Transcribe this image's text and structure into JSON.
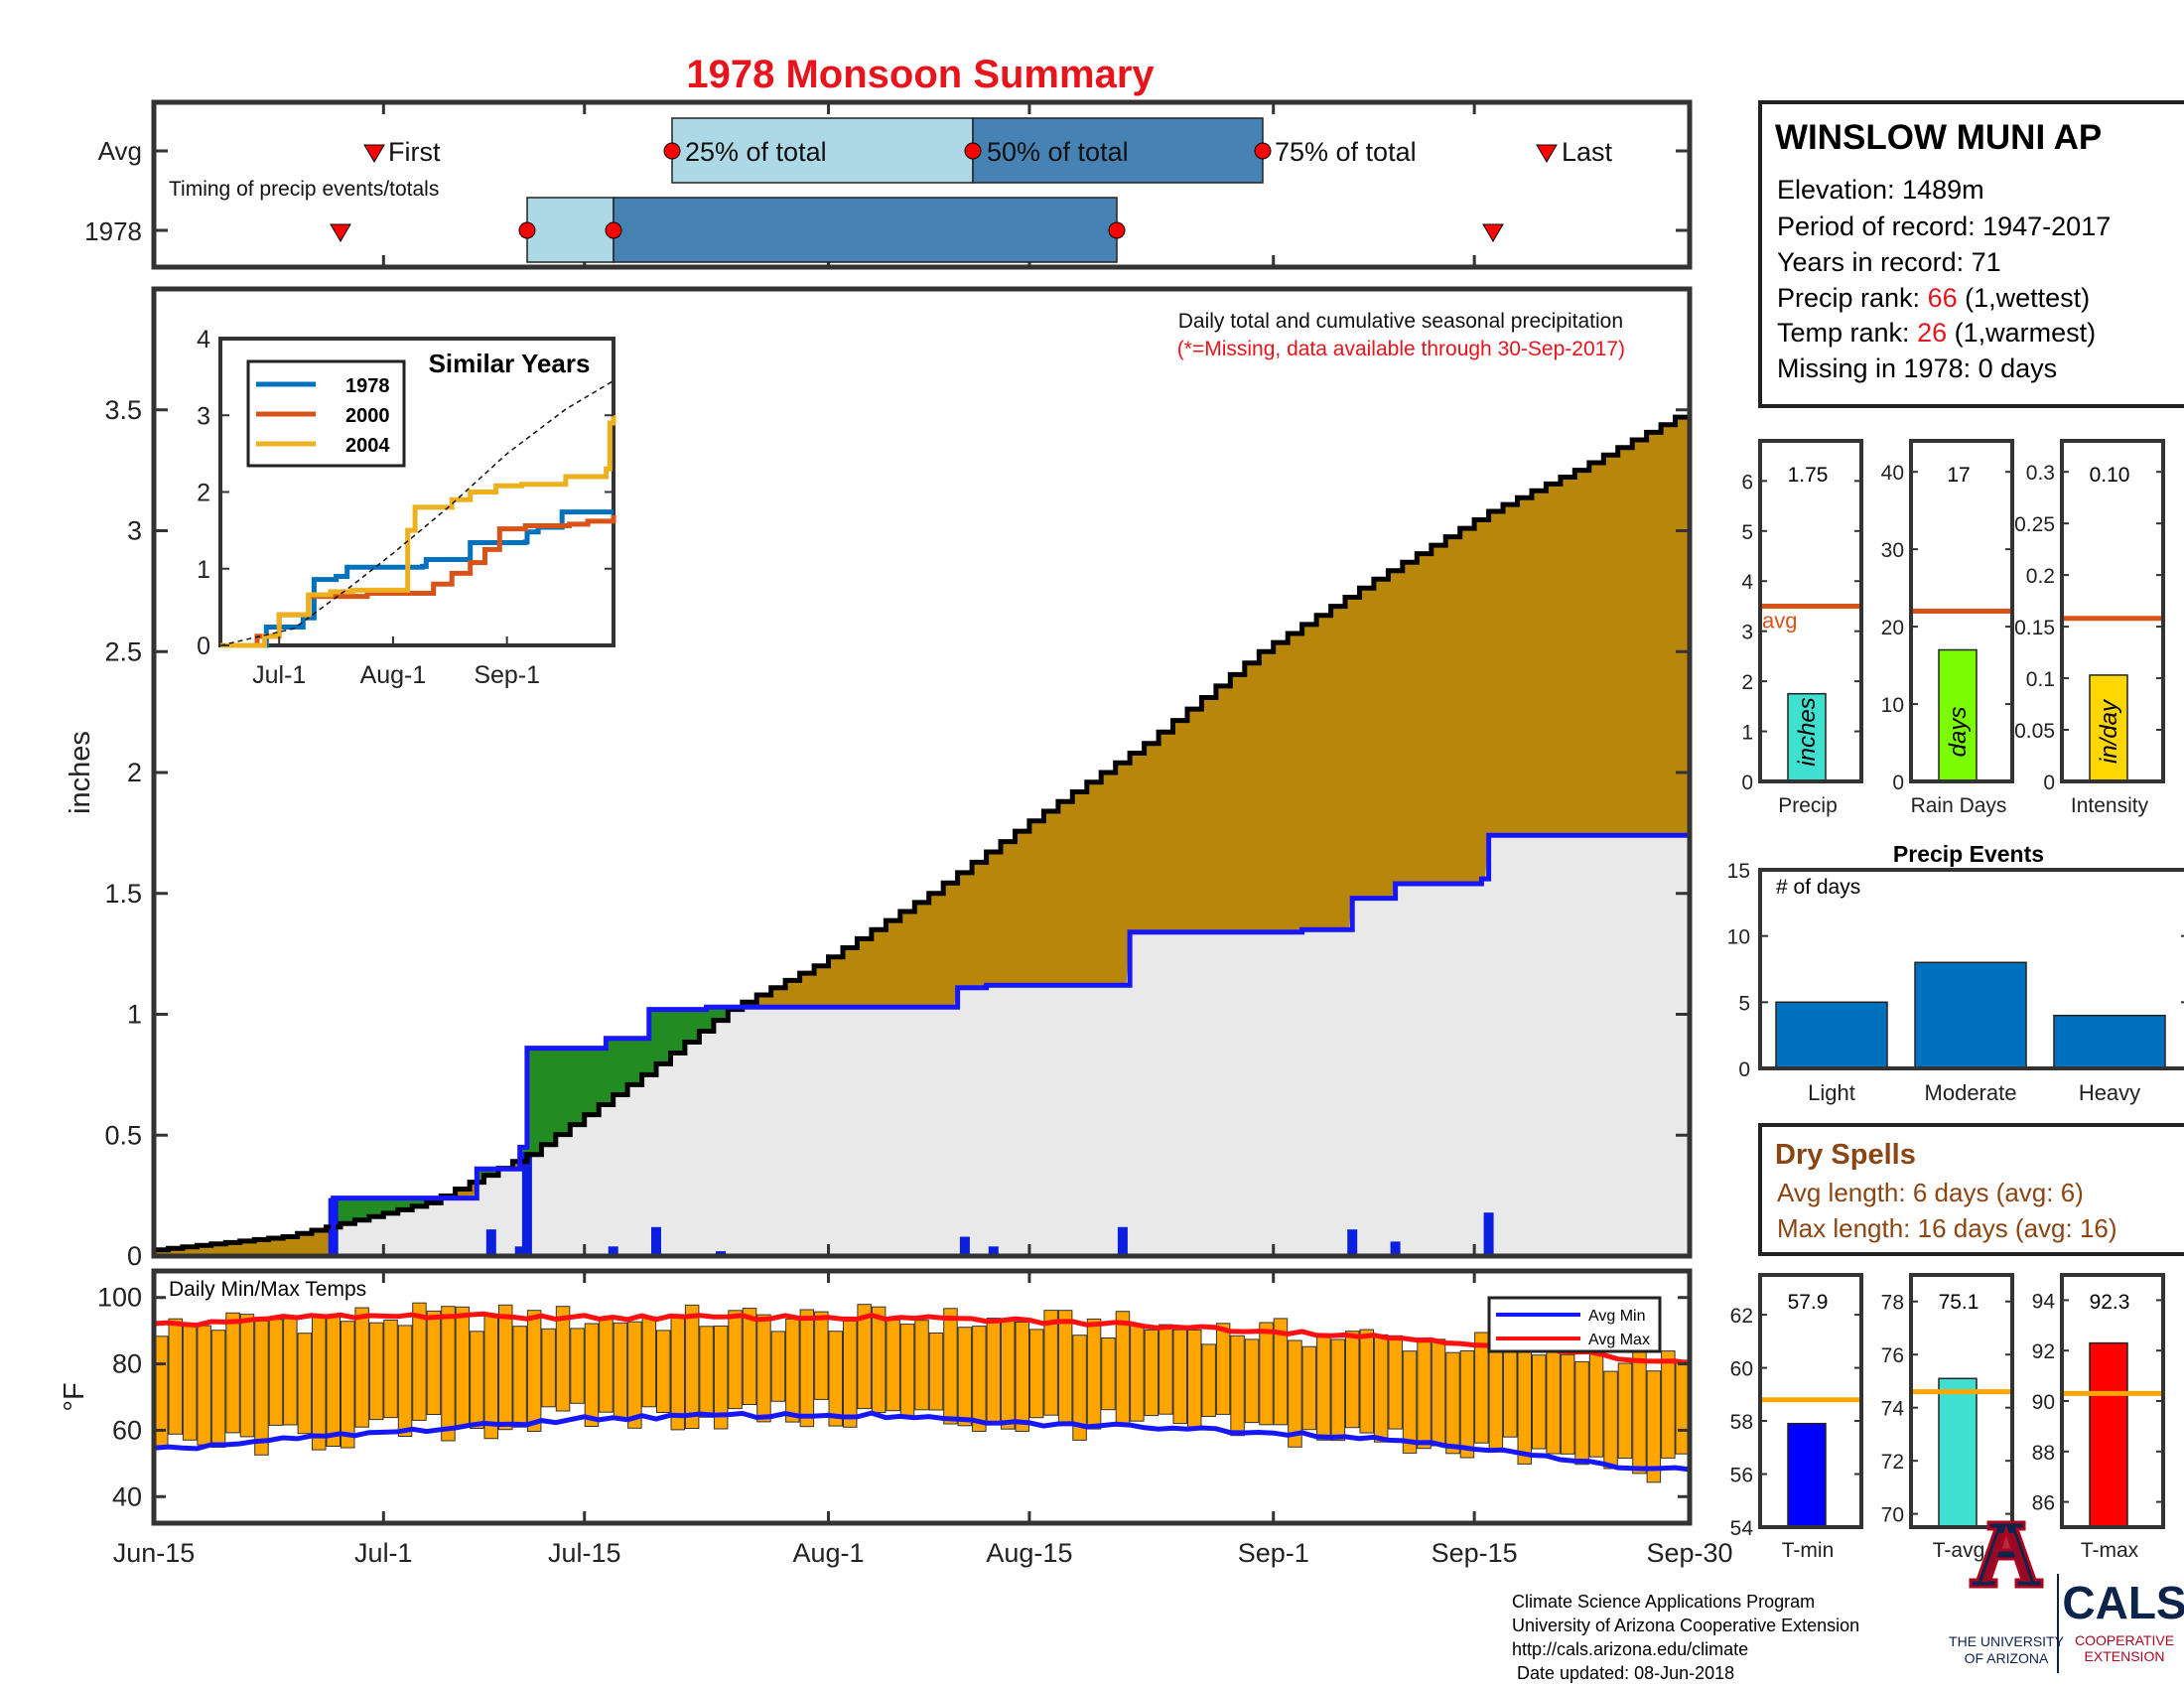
{
  "title": "1978 Monsoon Summary",
  "colors": {
    "title": "#e8141b",
    "cum_avg": "#b8860b",
    "green": "#228b22",
    "light_gray": "#e9e9e9",
    "blue_line": "#1717ff",
    "bar_blue": "#0a1fe0",
    "orange": "#ffa500",
    "avg_line": "#d95319",
    "rain_days": "#7cfc00",
    "precip_bar": "#40e0d0",
    "intensity": "#ffd700",
    "events": "#0072bd",
    "tmin": "#0000ff",
    "tavg": "#40e0d0",
    "tmax": "#ff0000",
    "light_box": "#add8e6",
    "dark_box": "#4682b4",
    "marker": "#ff0000",
    "dry_text": "#8b4513"
  },
  "timing": {
    "row_labels": [
      "Avg",
      "1978"
    ],
    "caption": "Timing of precip events/totals",
    "avg_labels": {
      "first": "First",
      "q25": "25% of total",
      "q50": "50% of total",
      "q75": "75% of total",
      "last": "Last"
    },
    "avg_days": {
      "first": 9.5,
      "q25": 31,
      "q50": 48.5,
      "q75": 65,
      "last": 91
    },
    "y1978_days": {
      "first": 7.5,
      "q25": 21,
      "q50": 26,
      "q75": 55,
      "last": 77
    }
  },
  "station": {
    "name": "WINSLOW MUNI AP",
    "elevation": "Elevation: 1489m",
    "period": "Period of record: 1947-2017",
    "years": "Years in record: 71",
    "precip_rank_label": "Precip rank: ",
    "precip_rank_value": "66",
    "precip_rank_note": " (1,wettest)",
    "temp_rank_label": "Temp rank: ",
    "temp_rank_value": "26",
    "temp_rank_note": " (1,warmest)",
    "missing": "Missing in 1978: 0 days"
  },
  "main": {
    "note1": "Daily total and cumulative seasonal precipitation",
    "note2": "(*=Missing, data available through 30-Sep-2017)",
    "ylabel": "inches"
  },
  "inset": {
    "title": "Similar Years",
    "legend": [
      "1978",
      "2000",
      "2004"
    ]
  },
  "temps": {
    "label": "Daily Min/Max Temps",
    "ylabel": "°F",
    "legend": [
      "Avg Min",
      "Avg Max"
    ]
  },
  "side_bars": {
    "precip": {
      "label": "Precip",
      "value_text": "1.75",
      "unit": "inches",
      "value": 1.75,
      "avg": 3.5,
      "avg_label": "avg"
    },
    "rain_days": {
      "label": "Rain Days",
      "value_text": "17",
      "unit": "days",
      "value": 17,
      "avg": 22
    },
    "intensity": {
      "label": "Intensity",
      "value_text": "0.10",
      "unit": "in/day",
      "value": 0.103,
      "avg": 0.158
    }
  },
  "events": {
    "title": "Precip Events",
    "ylabel": "# of days",
    "categories": [
      "Light",
      "Moderate",
      "Heavy"
    ],
    "values": [
      5,
      8,
      4
    ]
  },
  "dry_spells": {
    "title": "Dry Spells",
    "avg_length": "Avg length: 6 days (avg: 6)",
    "max_length": "Max length: 16 days (avg: 16)"
  },
  "temp_bars": {
    "tmin": {
      "label": "T-min",
      "value_text": "57.9",
      "value": 57.9,
      "avg": 58.8
    },
    "tavg": {
      "label": "T-avg",
      "value_text": "75.1",
      "value": 75.1,
      "avg": 74.6
    },
    "tmax": {
      "label": "T-max",
      "value_text": "92.3",
      "value": 92.3,
      "avg": 90.3
    }
  },
  "footer": {
    "lines": [
      "Climate Science Applications Program",
      "University of Arizona Cooperative Extension",
      "http://cals.arizona.edu/climate",
      " Date updated: 08-Jun-2018"
    ],
    "ua_name1": "THE UNIVERSITY",
    "ua_name2": "OF ARIZONA",
    "cals": "CALS",
    "cals_sub1": "COOPERATIVE",
    "cals_sub2": "EXTENSION"
  },
  "chart_data": {
    "type": "area",
    "title": "1978 Monsoon Summary",
    "ylabel": "inches",
    "x_ticks": [
      {
        "label": "Jun-15",
        "day": 0
      },
      {
        "label": "Jul-1",
        "day": 16
      },
      {
        "label": "Jul-15",
        "day": 30
      },
      {
        "label": "Aug-1",
        "day": 47
      },
      {
        "label": "Aug-15",
        "day": 61
      },
      {
        "label": "Sep-1",
        "day": 78
      },
      {
        "label": "Sep-15",
        "day": 92
      },
      {
        "label": "Sep-30",
        "day": 107
      }
    ],
    "ylim": [
      0,
      4
    ],
    "yticks": [
      0,
      0.5,
      1,
      1.5,
      2,
      2.5,
      3,
      3.5
    ],
    "avg_cumulative": {
      "name": "avg cumulative",
      "days": [
        0,
        10,
        13,
        20,
        27,
        35,
        41,
        47,
        55,
        62,
        70,
        78,
        86,
        94,
        100,
        107
      ],
      "values": [
        0.02,
        0.08,
        0.12,
        0.22,
        0.42,
        0.75,
        1.02,
        1.2,
        1.5,
        1.8,
        2.12,
        2.5,
        2.8,
        3.08,
        3.25,
        3.47
      ]
    },
    "cumulative_1978": {
      "name": "1978",
      "steps": [
        [
          0,
          0
        ],
        [
          12.5,
          0.24
        ],
        [
          22.5,
          0.36
        ],
        [
          25.5,
          0.45
        ],
        [
          26,
          0.86
        ],
        [
          31.5,
          0.9
        ],
        [
          34.5,
          1.02
        ],
        [
          38.5,
          1.03
        ],
        [
          55.5,
          1.03
        ],
        [
          56,
          1.11
        ],
        [
          58,
          1.12
        ],
        [
          67.5,
          1.12
        ],
        [
          68,
          1.34
        ],
        [
          80,
          1.35
        ],
        [
          83,
          1.35
        ],
        [
          83.5,
          1.48
        ],
        [
          86.5,
          1.54
        ],
        [
          92.5,
          1.56
        ],
        [
          93,
          1.74
        ],
        [
          107,
          1.74
        ]
      ]
    },
    "daily_1978": {
      "name": "daily precip 1978",
      "days": [
        12.5,
        23.5,
        25.5,
        26,
        32,
        35,
        39.5,
        56.5,
        58.5,
        66.5,
        67.5,
        80,
        83.5,
        86.5,
        93
      ],
      "values": [
        0.24,
        0.11,
        0.04,
        0.43,
        0.04,
        0.12,
        0.02,
        0.08,
        0.04,
        0.01,
        0.12,
        0.01,
        0.11,
        0.06,
        0.18
      ]
    },
    "temps": {
      "ylim": [
        32,
        108
      ],
      "yticks": [
        40,
        60,
        80,
        100
      ],
      "avg_min": {
        "days": [
          0,
          10,
          20,
          30,
          40,
          50,
          60,
          70,
          80,
          90,
          100,
          107
        ],
        "values": [
          54,
          57.5,
          60.5,
          63.5,
          64.5,
          64.5,
          62,
          61,
          59,
          56,
          50,
          48
        ]
      },
      "avg_max": {
        "days": [
          0,
          10,
          20,
          30,
          40,
          50,
          60,
          70,
          80,
          90,
          100,
          107
        ],
        "values": [
          91.5,
          94,
          94.5,
          94,
          94,
          94,
          93,
          91.5,
          89.5,
          87,
          83,
          80
        ]
      }
    },
    "inset": {
      "x_ticks": [
        {
          "label": "Jul-1",
          "day": 16
        },
        {
          "label": "Aug-1",
          "day": 47
        },
        {
          "label": "Sep-1",
          "day": 78
        }
      ],
      "ylim": [
        0,
        4
      ],
      "yticks": [
        0,
        1,
        2,
        3,
        4
      ],
      "series": [
        {
          "name": "1978",
          "steps": [
            [
              0,
              0
            ],
            [
              12.5,
              0.24
            ],
            [
              22.5,
              0.36
            ],
            [
              25.5,
              0.86
            ],
            [
              31.5,
              0.9
            ],
            [
              34.5,
              1.02
            ],
            [
              55,
              1.03
            ],
            [
              56,
              1.12
            ],
            [
              68,
              1.34
            ],
            [
              83,
              1.35
            ],
            [
              83.5,
              1.48
            ],
            [
              86.5,
              1.54
            ],
            [
              93,
              1.74
            ],
            [
              107,
              1.74
            ]
          ]
        },
        {
          "name": "2000",
          "steps": [
            [
              0,
              0
            ],
            [
              10,
              0.12
            ],
            [
              16,
              0.4
            ],
            [
              24,
              0.64
            ],
            [
              28,
              0.64
            ],
            [
              37,
              0.64
            ],
            [
              40,
              0.68
            ],
            [
              55,
              0.68
            ],
            [
              58,
              0.8
            ],
            [
              63,
              0.94
            ],
            [
              68,
              1.08
            ],
            [
              72,
              1.25
            ],
            [
              76,
              1.52
            ],
            [
              83,
              1.56
            ],
            [
              95,
              1.58
            ],
            [
              100,
              1.62
            ],
            [
              107,
              1.7
            ]
          ]
        },
        {
          "name": "2004",
          "steps": [
            [
              0,
              0
            ],
            [
              12,
              0.12
            ],
            [
              16,
              0.4
            ],
            [
              24,
              0.66
            ],
            [
              30,
              0.7
            ],
            [
              36,
              0.72
            ],
            [
              51,
              1.5
            ],
            [
              53,
              1.8
            ],
            [
              63,
              1.9
            ],
            [
              68,
              2.0
            ],
            [
              75,
              2.08
            ],
            [
              82,
              2.1
            ],
            [
              94,
              2.2
            ],
            [
              105,
              2.3
            ],
            [
              106,
              2.9
            ],
            [
              107,
              3.0
            ]
          ]
        },
        {
          "name": "avg",
          "days": [
            0,
            20,
            35,
            47,
            62,
            78,
            94,
            107
          ],
          "values": [
            0,
            0.22,
            0.75,
            1.2,
            1.8,
            2.5,
            3.08,
            3.45
          ]
        }
      ]
    }
  }
}
